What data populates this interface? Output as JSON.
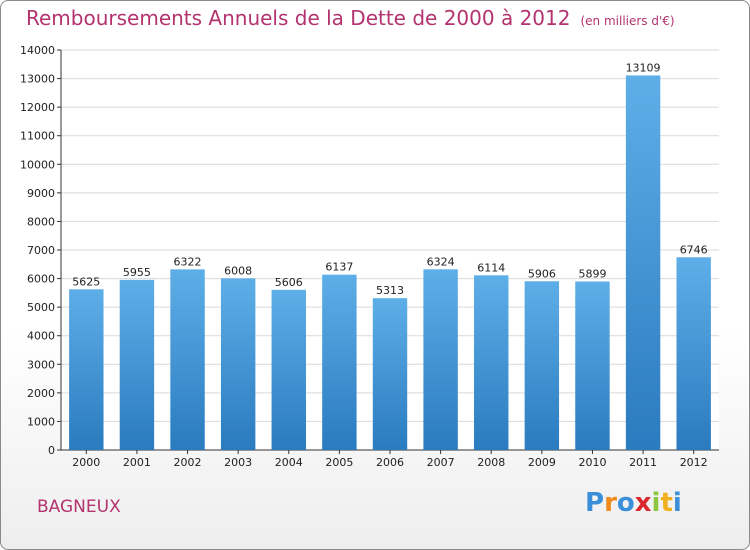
{
  "title": "Remboursements Annuels de la Dette de 2000 à 2012",
  "unit": "(en milliers d'€)",
  "city": "BAGNEUX",
  "logo": {
    "letters": [
      "P",
      "r",
      "o",
      "x",
      "i",
      "t",
      "i"
    ],
    "colors": [
      "#3a8fd8",
      "#f08a1c",
      "#3a8fd8",
      "#d9272e",
      "#8cc63f",
      "#f2b01e",
      "#3a8fd8"
    ]
  },
  "colors": {
    "bar_light": "#5eaee8",
    "bar_dark": "#2a7bbf",
    "grid": "#d9d9d9",
    "axis": "#333333"
  },
  "chart_data": {
    "type": "bar",
    "categories": [
      "2000",
      "2001",
      "2002",
      "2003",
      "2004",
      "2005",
      "2006",
      "2007",
      "2008",
      "2009",
      "2010",
      "2011",
      "2012"
    ],
    "values": [
      5625,
      5955,
      6322,
      6008,
      5606,
      6137,
      5313,
      6324,
      6114,
      5906,
      5899,
      13109,
      6746
    ],
    "ylim": [
      0,
      14000
    ],
    "yticks": [
      0,
      1000,
      2000,
      3000,
      4000,
      5000,
      6000,
      7000,
      8000,
      9000,
      10000,
      11000,
      12000,
      13000,
      14000
    ],
    "grid": true
  }
}
